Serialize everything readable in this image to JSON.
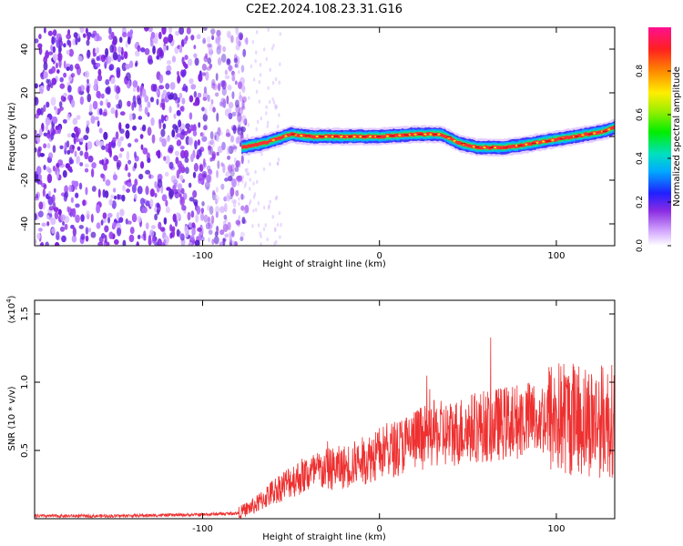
{
  "title": "C2E2.2024.108.23.31.G16",
  "colors": {
    "snr_line": "#ee3030",
    "ridge": "#e03030",
    "axis": "#000000"
  },
  "colorbar": {
    "label": "Normalized spectral amplitude",
    "ticks": [
      "0.0",
      "0.2",
      "0.4",
      "0.6",
      "0.8"
    ],
    "tick_values": [
      0.0,
      0.2,
      0.4,
      0.6,
      0.8
    ]
  },
  "chart_data": [
    {
      "type": "heatmap",
      "xlabel": "Height of straight line (km)",
      "ylabel": "Frequency (Hz)",
      "xlim": [
        -195,
        133
      ],
      "ylim": [
        -50,
        50
      ],
      "xticks": [
        "-100",
        "0",
        "100"
      ],
      "xtick_values": [
        -100,
        0,
        100
      ],
      "yticks": [
        "40",
        "20",
        "0",
        "-20",
        "-40"
      ],
      "ytick_values": [
        40,
        20,
        0,
        -20,
        -40
      ],
      "ridge_x": [
        -78,
        -65,
        -50,
        -40,
        -20,
        0,
        20,
        35,
        45,
        55,
        70,
        80,
        95,
        110,
        125,
        133
      ],
      "ridge_y": [
        -5,
        -3,
        1,
        0,
        0,
        0,
        1,
        1,
        -3,
        -5,
        -5,
        -4,
        -2,
        0,
        2,
        4
      ],
      "noise_region_x": [
        -195,
        -75
      ]
    },
    {
      "type": "line",
      "xlabel": "Height of straight line (km)",
      "ylabel": "SNR (10 * v/v)",
      "multiplier": "(x10",
      "multiplier_exp": "4",
      "xlim": [
        -195,
        133
      ],
      "ylim": [
        0,
        1.6
      ],
      "xticks": [
        "-100",
        "0",
        "100"
      ],
      "xtick_values": [
        -100,
        0,
        100
      ],
      "yticks": [
        "1.5",
        "1.0",
        "0.5"
      ],
      "ytick_values": [
        1.5,
        1.0,
        0.5
      ],
      "x": [
        -195,
        -150,
        -100,
        -80,
        -70,
        -60,
        -50,
        -40,
        -30,
        -20,
        -10,
        0,
        10,
        20,
        30,
        40,
        50,
        60,
        70,
        80,
        90,
        100,
        110,
        120,
        133
      ],
      "y": [
        0.02,
        0.02,
        0.03,
        0.04,
        0.1,
        0.2,
        0.28,
        0.33,
        0.36,
        0.38,
        0.42,
        0.48,
        0.52,
        0.58,
        0.62,
        0.62,
        0.66,
        0.68,
        0.7,
        0.72,
        0.74,
        0.74,
        0.74,
        0.72,
        0.72
      ]
    }
  ]
}
